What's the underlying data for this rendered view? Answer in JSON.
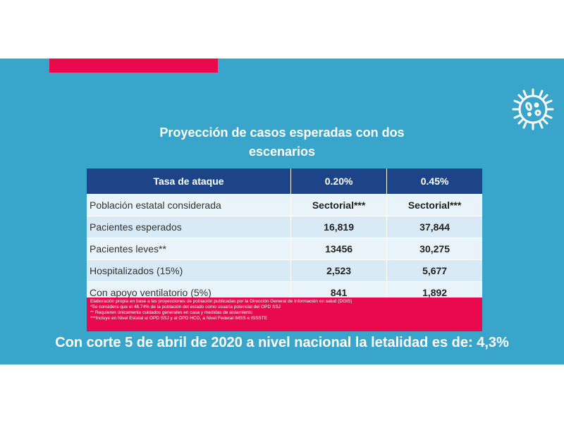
{
  "slide": {
    "title_line1": "Proyección de casos esperadas con dos",
    "title_line2": "escenarios",
    "table": {
      "headers": [
        "Tasa de ataque",
        "0.20%",
        "0.45%"
      ],
      "rows": [
        [
          "Población estatal considerada",
          "Sectorial***",
          "Sectorial***"
        ],
        [
          "Pacientes esperados",
          "16,819",
          "37,844"
        ],
        [
          "Pacientes leves**",
          "13456",
          "30,275"
        ],
        [
          "Hospitalizados (15%)",
          "2,523",
          "5,677"
        ],
        [
          "Con apoyo ventilatorio (5%)",
          "841",
          "1,892"
        ]
      ]
    },
    "notes": [
      "Elaboración propia en base a las proyecciones de población publicadas por la Dirección General de Información en salud (DGIS)",
      "*Se considera que el 48.74% de la población del estado como usuaria potencial del OPD SSJ",
      "** Requieren únicamente cuidados generales en casa y medidas de aislamiento",
      "***Incluye en Nivel Estatal al OPD SSJ y al OPD HCG, a Nivel Federal IMSS e ISSSTE"
    ],
    "footer": "Con corte 5 de abril de 2020 a nivel nacional la letalidad es de: 4,3%",
    "icon": "virus-icon",
    "colors": {
      "background": "#3aa5cb",
      "accent": "#e8094f",
      "header": "#1c4487"
    }
  }
}
